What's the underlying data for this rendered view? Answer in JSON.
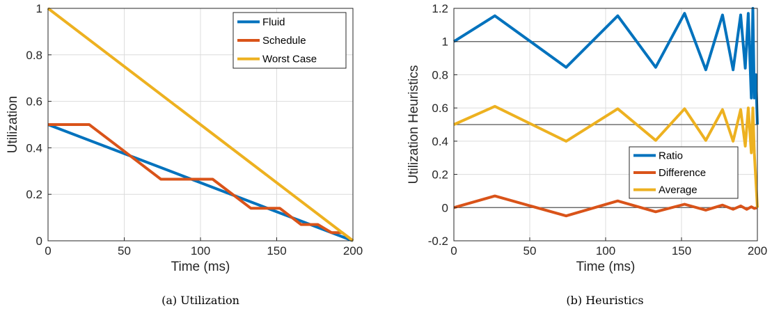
{
  "colors": {
    "blue": "#0072BD",
    "orange": "#D95319",
    "yellow": "#EDB120",
    "grid": "#dcdcdc",
    "reference": "#555555"
  },
  "chart_data": [
    {
      "type": "line",
      "caption": "(a) Utilization",
      "xlabel": "Time (ms)",
      "ylabel": "Utilization",
      "xlim": [
        0,
        200
      ],
      "ylim": [
        0,
        1
      ],
      "xticks": [
        0,
        50,
        100,
        150,
        200
      ],
      "yticks": [
        0,
        0.2,
        0.4,
        0.6,
        0.8,
        1
      ],
      "xtick_labels": [
        "0",
        "50",
        "100",
        "150",
        "200"
      ],
      "ytick_labels": [
        "0",
        "0.2",
        "0.4",
        "0.6",
        "0.8",
        "1"
      ],
      "grid": true,
      "legend_position": "top-right",
      "reference_lines": [],
      "series": [
        {
          "name": "Fluid",
          "color": "#0072BD",
          "x": [
            0,
            200
          ],
          "y": [
            0.5,
            0
          ]
        },
        {
          "name": "Schedule",
          "color": "#D95319",
          "x": [
            0,
            27,
            49,
            74,
            108,
            133,
            152,
            166,
            177,
            186,
            193,
            200
          ],
          "y": [
            0.5,
            0.5,
            0.39,
            0.265,
            0.265,
            0.14,
            0.14,
            0.07,
            0.07,
            0.035,
            0.035,
            0
          ]
        },
        {
          "name": "Worst Case",
          "color": "#EDB120",
          "x": [
            0,
            200
          ],
          "y": [
            1,
            0
          ]
        }
      ]
    },
    {
      "type": "line",
      "caption": "(b) Heuristics",
      "xlabel": "Time (ms)",
      "ylabel": "Utilization Heuristics",
      "xlim": [
        0,
        200
      ],
      "ylim": [
        -0.2,
        1.2
      ],
      "xticks": [
        0,
        50,
        100,
        150,
        200
      ],
      "yticks": [
        -0.2,
        0,
        0.2,
        0.4,
        0.6,
        0.8,
        1,
        1.2
      ],
      "xtick_labels": [
        "0",
        "50",
        "100",
        "150",
        "200"
      ],
      "ytick_labels": [
        "-0.2",
        "0",
        "0.2",
        "0.4",
        "0.6",
        "0.8",
        "1",
        "1.2"
      ],
      "grid": true,
      "legend_position": "bottom-right",
      "reference_lines": [
        0,
        0.5,
        1
      ],
      "series": [
        {
          "name": "Ratio",
          "color": "#0072BD",
          "x": [
            0,
            27,
            74,
            108,
            133,
            152,
            166,
            177,
            184,
            189,
            192,
            194,
            196,
            197,
            198,
            199,
            200
          ],
          "y": [
            1.0,
            1.155,
            0.845,
            1.155,
            0.845,
            1.17,
            0.83,
            1.16,
            0.83,
            1.16,
            0.84,
            1.17,
            0.66,
            1.2,
            0.66,
            0.8,
            0.5
          ]
        },
        {
          "name": "Difference",
          "color": "#D95319",
          "x": [
            0,
            27,
            74,
            108,
            133,
            152,
            166,
            177,
            184,
            189,
            193,
            196,
            198,
            200
          ],
          "y": [
            0,
            0.07,
            -0.05,
            0.04,
            -0.025,
            0.02,
            -0.015,
            0.015,
            -0.01,
            0.01,
            -0.01,
            0.005,
            -0.005,
            0
          ]
        },
        {
          "name": "Average",
          "color": "#EDB120",
          "x": [
            0,
            27,
            74,
            108,
            133,
            152,
            166,
            177,
            184,
            189,
            192,
            194,
            196,
            197,
            198,
            200
          ],
          "y": [
            0.5,
            0.61,
            0.4,
            0.595,
            0.405,
            0.595,
            0.405,
            0.59,
            0.4,
            0.59,
            0.37,
            0.6,
            0.33,
            0.6,
            0.33,
            0
          ]
        }
      ]
    }
  ]
}
